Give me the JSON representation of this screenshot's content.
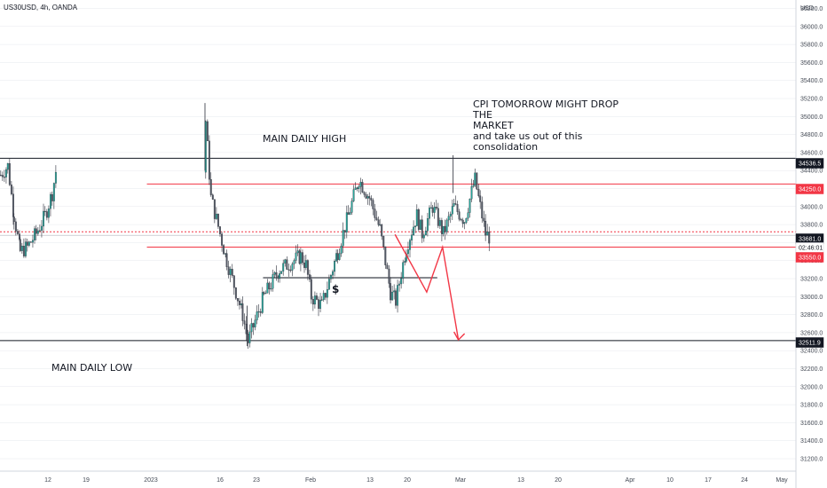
{
  "header": {
    "symbol": "US30USD, 4h, OANDA"
  },
  "annotations": {
    "main_high": "MAIN DAILY HIGH",
    "main_low": "MAIN DAILY LOW",
    "cpi_line1": "CPI TOMORROW MIGHT DROP THE",
    "cpi_line2": "MARKET",
    "cpi_line3": "and take us out of this",
    "cpi_line4": "consolidation",
    "dollar": "$"
  },
  "colors": {
    "up": "#26a69a",
    "down": "#555a66",
    "red": "#f23645",
    "black": "#131722",
    "grid": "#e6e8ee",
    "axis_text": "#444a55"
  },
  "chart_data": {
    "type": "candlestick",
    "title": "US30USD, 4h, OANDA",
    "y_unit": "USD",
    "ylim": [
      30950,
      36350
    ],
    "grid": true,
    "y_ticks": [
      "36200.0",
      "36000.0",
      "35800.0",
      "35600.0",
      "35400.0",
      "35200.0",
      "35000.0",
      "34800.0",
      "34600.0",
      "34400.0",
      "34200.0",
      "34000.0",
      "33800.0",
      "33600.0",
      "33400.0",
      "33200.0",
      "33000.0",
      "32800.0",
      "32600.0",
      "32400.0",
      "32200.0",
      "32000.0",
      "31800.0",
      "31600.0",
      "31400.0",
      "31200.0"
    ],
    "x_ticks": [
      "12",
      "19",
      "2023",
      "16",
      "23",
      "Feb",
      "13",
      "20",
      "Mar",
      "13",
      "20",
      "Apr",
      "10",
      "17",
      "24",
      "May"
    ],
    "price_tags": [
      {
        "label": "34536.5",
        "value": 34536.5,
        "style": "dark"
      },
      {
        "label": "34250.0",
        "value": 34250.0,
        "style": "red"
      },
      {
        "label": "33681.0",
        "value": 33681.0,
        "style": "dark"
      },
      {
        "label": "02:46:01",
        "value": 33600,
        "style": "white"
      },
      {
        "label": "33550.0",
        "value": 33550.0,
        "style": "red"
      },
      {
        "label": "32511.9",
        "value": 32511.9,
        "style": "dark"
      }
    ],
    "levels": [
      {
        "name": "main-daily-high",
        "value": 34536.5,
        "color": "black",
        "from": "start"
      },
      {
        "name": "resistance",
        "value": 34250.0,
        "color": "red",
        "from": "Jan 1"
      },
      {
        "name": "current-dotted",
        "value": 33720.0,
        "color": "red",
        "dashed": true,
        "from": "start"
      },
      {
        "name": "support",
        "value": 33550.0,
        "color": "red",
        "from": "Jan 1"
      },
      {
        "name": "liquidity",
        "value": 33210.0,
        "color": "black",
        "from": "Jan 23",
        "to": "Feb 25"
      },
      {
        "name": "main-daily-low",
        "value": 32511.9,
        "color": "black",
        "from": "start"
      }
    ],
    "projection": [
      {
        "date": "Feb 17",
        "value": 33690
      },
      {
        "date": "Feb 23",
        "value": 33050
      },
      {
        "date": "Feb 26",
        "value": 33550
      },
      {
        "date": "Mar 1",
        "value": 32520
      }
    ],
    "anchors": [
      {
        "date": "Jan 12",
        "value": 34950,
        "hold": 3
      },
      {
        "date": "Jan 13",
        "value": 34100,
        "hold": 2
      },
      {
        "date": "Jan 16",
        "value": 33400,
        "hold": 2
      },
      {
        "date": "Jan 19",
        "value": 32800,
        "hold": 4
      },
      {
        "date": "Jan 20",
        "value": 32500,
        "hold": 3
      },
      {
        "date": "Jan 23",
        "value": 33000,
        "hold": 3
      },
      {
        "date": "Jan 26",
        "value": 33300,
        "hold": 4
      },
      {
        "date": "Jan 30",
        "value": 33450,
        "hold": 3
      },
      {
        "date": "Jan 31",
        "value": 33350,
        "hold": 2
      },
      {
        "date": "Feb 1",
        "value": 33000,
        "hold": 3
      },
      {
        "date": "Feb 3",
        "value": 32900,
        "hold": 2
      },
      {
        "date": "Feb 6",
        "value": 33500,
        "hold": 3
      },
      {
        "date": "Feb 8",
        "value": 33900,
        "hold": 3
      },
      {
        "date": "Feb 10",
        "value": 34300,
        "hold": 4
      },
      {
        "date": "Feb 12",
        "value": 34100,
        "hold": 3
      },
      {
        "date": "Feb 14",
        "value": 33750,
        "hold": 3
      },
      {
        "date": "Feb 16",
        "value": 33050,
        "hold": 4
      },
      {
        "date": "Feb 17",
        "value": 32950,
        "hold": 2
      },
      {
        "date": "Feb 19",
        "value": 33550,
        "hold": 3
      },
      {
        "date": "Feb 21",
        "value": 33900,
        "hold": 2
      },
      {
        "date": "Feb 22",
        "value": 33700,
        "hold": 3
      },
      {
        "date": "Feb 24",
        "value": 34000,
        "hold": 3
      },
      {
        "date": "Feb 26",
        "value": 33700,
        "hold": 2
      },
      {
        "date": "Feb 28",
        "value": 34000,
        "hold": 4
      },
      {
        "date": "Mar 2",
        "value": 33850,
        "hold": 2
      },
      {
        "date": "Mar 4",
        "value": 34300,
        "hold": 3
      },
      {
        "date": "Mar 5",
        "value": 34000,
        "hold": 3
      },
      {
        "date": "Mar 6",
        "value": 33700,
        "hold": 2
      },
      {
        "date": "Mar 7",
        "value": 33650,
        "hold": 2
      }
    ]
  }
}
